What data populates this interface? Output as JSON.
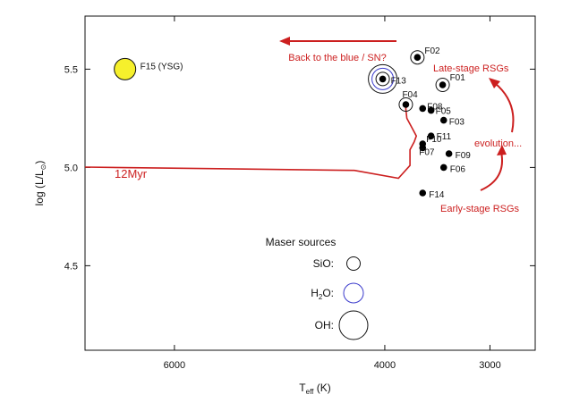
{
  "chart_data": {
    "type": "scatter",
    "xlabel": "T",
    "xlabel_sub": "eff",
    "xlabel_unit": " (K)",
    "ylabel": "log (L/L",
    "ylabel_end": ")",
    "x_reversed": true,
    "xlim": [
      6850,
      2570
    ],
    "ylim": [
      4.07,
      5.77
    ],
    "x_ticks": [
      6000,
      4000,
      3000
    ],
    "x_tick_labels": [
      "6000",
      "4000",
      "3000"
    ],
    "y_ticks": [
      4.5,
      5.0,
      5.5
    ],
    "y_tick_labels": [
      "4.5",
      "5.0",
      "5.5"
    ],
    "stars": [
      {
        "name": "F02",
        "teff": 3690,
        "logl": 5.56,
        "maser": "SiO"
      },
      {
        "name": "F13",
        "teff": 4020,
        "logl": 5.45,
        "maser": "OH"
      },
      {
        "name": "F01",
        "teff": 3450,
        "logl": 5.42,
        "maser": "SiO"
      },
      {
        "name": "F04",
        "teff": 3800,
        "logl": 5.32,
        "maser": "SiO"
      },
      {
        "name": "F08",
        "teff": 3640,
        "logl": 5.3,
        "maser": ""
      },
      {
        "name": "F05",
        "teff": 3560,
        "logl": 5.29,
        "maser": ""
      },
      {
        "name": "F03",
        "teff": 3440,
        "logl": 5.24,
        "maser": ""
      },
      {
        "name": "F11",
        "teff": 3560,
        "logl": 5.16,
        "maser": ""
      },
      {
        "name": "F10",
        "teff": 3640,
        "logl": 5.12,
        "maser": ""
      },
      {
        "name": "F07",
        "teff": 3640,
        "logl": 5.1,
        "maser": ""
      },
      {
        "name": "F09",
        "teff": 3390,
        "logl": 5.07,
        "maser": ""
      },
      {
        "name": "F06",
        "teff": 3440,
        "logl": 5.0,
        "maser": ""
      },
      {
        "name": "F14",
        "teff": 3640,
        "logl": 4.87,
        "maser": ""
      },
      {
        "name": "F15 (YSG)",
        "teff": 6470,
        "logl": 5.5,
        "maser": "",
        "color": "#f6f02c"
      }
    ],
    "isochrone": {
      "label": "12Myr",
      "color": "#cc1f1f",
      "teff": [
        6850,
        4290,
        3870,
        3760,
        3760,
        3720,
        3700,
        3740,
        3790,
        3800,
        3780
      ],
      "logl": [
        5.002,
        4.985,
        4.945,
        5.01,
        5.09,
        5.13,
        5.16,
        5.2,
        5.25,
        5.3,
        5.33
      ]
    },
    "annotations": {
      "color": "#cc1f1f",
      "back_to_blue": "Back to the blue / SN?",
      "late_stage": "Late-stage RSGs",
      "evolution": "evolution...",
      "early_stage": "Early-stage RSGs"
    },
    "legend": {
      "title": "Maser sources",
      "placement": "lower-center",
      "items": [
        {
          "label": "SiO:",
          "marker": "small-black-circle"
        },
        {
          "label_main": "H",
          "label_sub": "2",
          "label_end": "O:",
          "marker": "medium-blue-circle"
        },
        {
          "label": "OH:",
          "marker": "large-black-circle"
        }
      ]
    }
  }
}
